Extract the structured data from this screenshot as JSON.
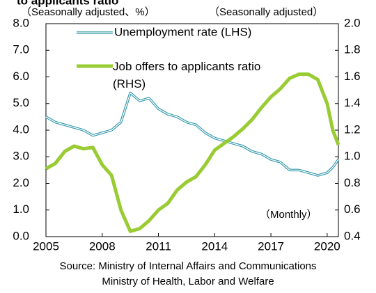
{
  "chart_data": {
    "type": "line",
    "title": "to applicants ratio",
    "y_label": "（Seasonally adjusted、%）",
    "y2_label": "（Seasonally adjusted）",
    "annotation": "（Monthly）",
    "source": [
      "Source: Ministry of Internal Affairs and Communications",
      "Ministry of Health, Labor and Welfare"
    ],
    "legend": "top",
    "xlim": [
      2005,
      2020.6
    ],
    "xticks": [
      2005,
      2008,
      2011,
      2014,
      2017,
      2020
    ],
    "ylim": [
      0,
      8
    ],
    "yticks": [
      {
        "value": 0,
        "label": "0.0"
      },
      {
        "value": 1,
        "label": "1.0"
      },
      {
        "value": 2,
        "label": "2.0"
      },
      {
        "value": 3,
        "label": "3.0"
      },
      {
        "value": 4,
        "label": "4.0"
      },
      {
        "value": 5,
        "label": "5.0"
      },
      {
        "value": 6,
        "label": "6.0"
      },
      {
        "value": 7,
        "label": "7.0"
      },
      {
        "value": 8,
        "label": "8.0"
      }
    ],
    "y2lim": [
      0.4,
      2.0
    ],
    "y2ticks": [
      0.4,
      0.6,
      0.8,
      {
        "value": 1,
        "label": "1.0"
      },
      1.2,
      1.4,
      1.6,
      1.8,
      {
        "value": 2,
        "label": "2.0"
      }
    ],
    "x": [
      2005,
      2005.5,
      2006,
      2006.5,
      2007,
      2007.5,
      2008,
      2008.5,
      2009,
      2009.5,
      2010,
      2010.5,
      2011,
      2011.5,
      2012,
      2012.5,
      2013,
      2013.5,
      2014,
      2014.5,
      2015,
      2015.5,
      2016,
      2016.5,
      2017,
      2017.5,
      2018,
      2018.5,
      2019,
      2019.5,
      2020,
      2020.3,
      2020.6
    ],
    "series": [
      {
        "name": "Unemployment rate (LHS)",
        "color": "#2e96a8",
        "axis": "y",
        "values": [
          4.5,
          4.3,
          4.2,
          4.1,
          4.0,
          3.8,
          3.9,
          4.0,
          4.3,
          5.4,
          5.1,
          5.2,
          4.8,
          4.6,
          4.5,
          4.3,
          4.2,
          3.9,
          3.7,
          3.6,
          3.5,
          3.4,
          3.2,
          3.1,
          2.9,
          2.8,
          2.5,
          2.5,
          2.4,
          2.3,
          2.4,
          2.6,
          2.9
        ]
      },
      {
        "name": "Job offers to applicants ratio (RHS)",
        "color": "#99cc33",
        "axis": "y2",
        "values": [
          0.91,
          0.95,
          1.04,
          1.08,
          1.06,
          1.07,
          0.94,
          0.86,
          0.6,
          0.44,
          0.46,
          0.52,
          0.6,
          0.65,
          0.75,
          0.81,
          0.85,
          0.94,
          1.05,
          1.1,
          1.15,
          1.21,
          1.28,
          1.37,
          1.45,
          1.51,
          1.59,
          1.62,
          1.62,
          1.58,
          1.4,
          1.2,
          1.09
        ]
      }
    ]
  }
}
